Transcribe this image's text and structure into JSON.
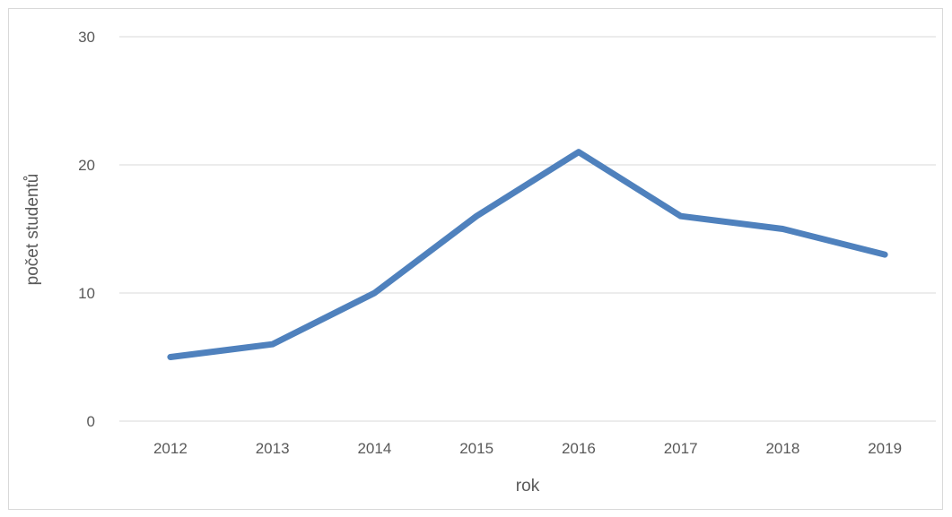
{
  "chart_data": {
    "type": "line",
    "title": "",
    "xlabel": "rok",
    "ylabel": "počet studentů",
    "categories": [
      "2012",
      "2013",
      "2014",
      "2015",
      "2016",
      "2017",
      "2018",
      "2019"
    ],
    "series": [
      {
        "values": [
          5,
          6,
          10,
          16,
          21,
          16,
          15,
          13
        ]
      }
    ],
    "ylim": [
      0,
      30
    ],
    "yticks": [
      0,
      10,
      20,
      30
    ],
    "grid": true,
    "legend": "none",
    "colors": {
      "line": "#4f81bd",
      "grid": "#d9d9d9",
      "text": "#595959",
      "frame": "#d9d9d9"
    }
  }
}
